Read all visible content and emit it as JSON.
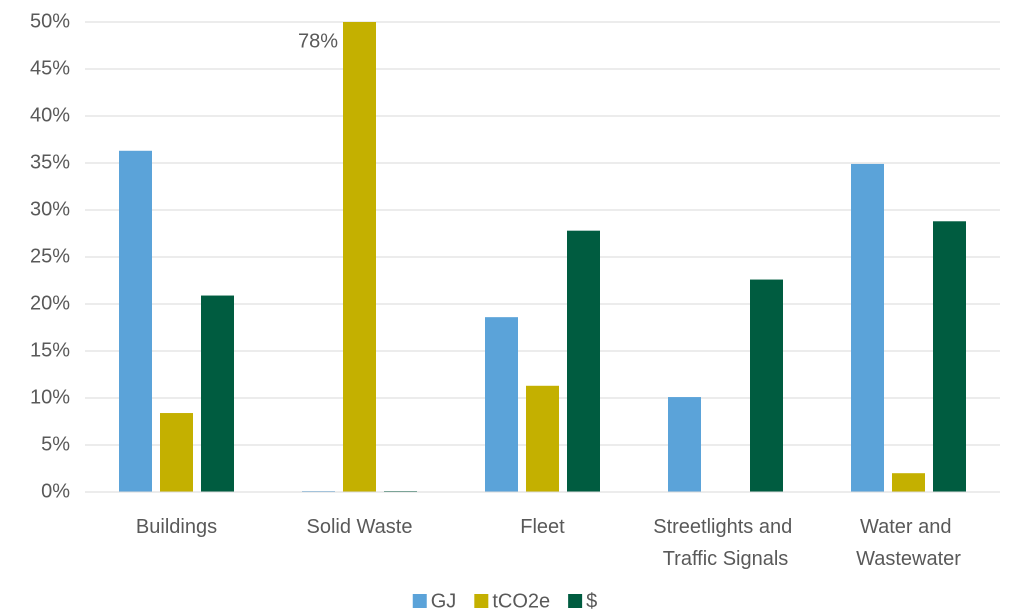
{
  "chart_data": {
    "type": "bar",
    "categories": [
      "Buildings",
      "Solid Waste",
      "Fleet",
      "Streetlights and Traffic Signals",
      "Water and Wastewater"
    ],
    "series": [
      {
        "name": "GJ",
        "color": "#5ba3d9",
        "values": [
          36.3,
          0.1,
          18.6,
          10.1,
          34.9
        ]
      },
      {
        "name": "tCO2e",
        "color": "#c4b000",
        "values": [
          8.4,
          78,
          11.3,
          0,
          2.0
        ],
        "value_labels": [
          null,
          "78%",
          null,
          null,
          null
        ]
      },
      {
        "name": "$",
        "color": "#005c40",
        "values": [
          20.9,
          0.1,
          27.8,
          22.6,
          28.8
        ]
      }
    ],
    "ylim": [
      0,
      50
    ],
    "yticks": [
      {
        "value": 0,
        "label": "0%"
      },
      {
        "value": 5,
        "label": "5%"
      },
      {
        "value": 10,
        "label": "10%"
      },
      {
        "value": 15,
        "label": "15%"
      },
      {
        "value": 20,
        "label": "20%"
      },
      {
        "value": 25,
        "label": "25%"
      },
      {
        "value": 30,
        "label": "30%"
      },
      {
        "value": 35,
        "label": "35%"
      },
      {
        "value": 40,
        "label": "40%"
      },
      {
        "value": 45,
        "label": "45%"
      },
      {
        "value": 50,
        "label": "50%"
      }
    ],
    "grid": true,
    "legend": "bottom"
  }
}
